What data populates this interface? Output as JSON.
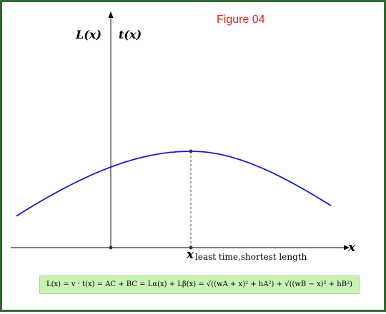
{
  "figure": {
    "title": "Figure 04",
    "y_label_1": "L(x)",
    "y_label_2": "t(x)",
    "x_axis_label": "x",
    "min_point_label": "x",
    "min_point_subscript": "least time,shortest length"
  },
  "formula": {
    "text": "L(x) = v · t(x) = AC + BC = Lα(x) + Lβ(x) = √((wA + x)² + hA²) + √((wB − x)² + hB²)"
  },
  "colors": {
    "curve": "#1a1acc",
    "formula_bg": "#c9f2b4",
    "title": "#e0201c",
    "border": "#2e6b2e"
  }
}
